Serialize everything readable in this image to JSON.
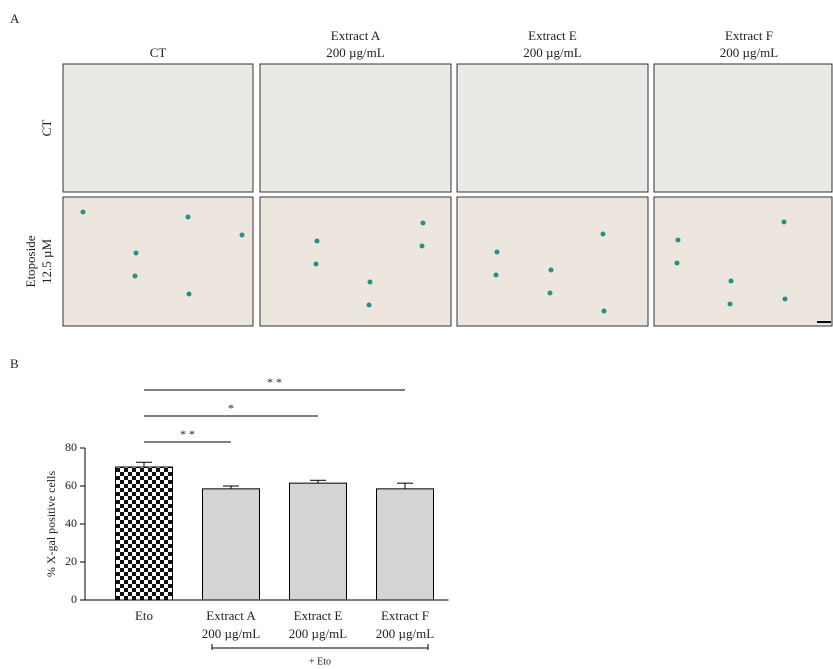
{
  "panel_a": {
    "label": "A",
    "columns": [
      [
        "CT"
      ],
      [
        "Extract A",
        "200 µg/mL"
      ],
      [
        "Extract E",
        "200 µg/mL"
      ],
      [
        "Extract F",
        "200 µg/mL"
      ]
    ],
    "rows": [
      [
        "CT"
      ],
      [
        "Etoposide",
        "12.5 µM"
      ]
    ]
  },
  "chart_data": {
    "type": "bar",
    "panel_label": "B",
    "y_label": "% X-gal positive cells",
    "categories": [
      "Eto",
      "Extract A",
      "Extract E",
      "Extract F"
    ],
    "category_sublabels": [
      null,
      "200 µg/mL",
      "200 µg/mL",
      "200 µg/mL"
    ],
    "values": [
      70,
      58.5,
      61.5,
      58.5
    ],
    "errors": [
      2.5,
      1.5,
      1.5,
      3
    ],
    "fills": [
      "checker",
      "#d4d4d4",
      "#d4d4d4",
      "#d4d4d4"
    ],
    "ylim": [
      0,
      80
    ],
    "yticks": [
      0,
      20,
      40,
      60,
      80
    ],
    "group_label": "+ Eto",
    "significance": [
      {
        "from": 0,
        "to": 1,
        "label": "* *"
      },
      {
        "from": 0,
        "to": 2,
        "label": "*"
      },
      {
        "from": 0,
        "to": 3,
        "label": "* *"
      }
    ]
  }
}
